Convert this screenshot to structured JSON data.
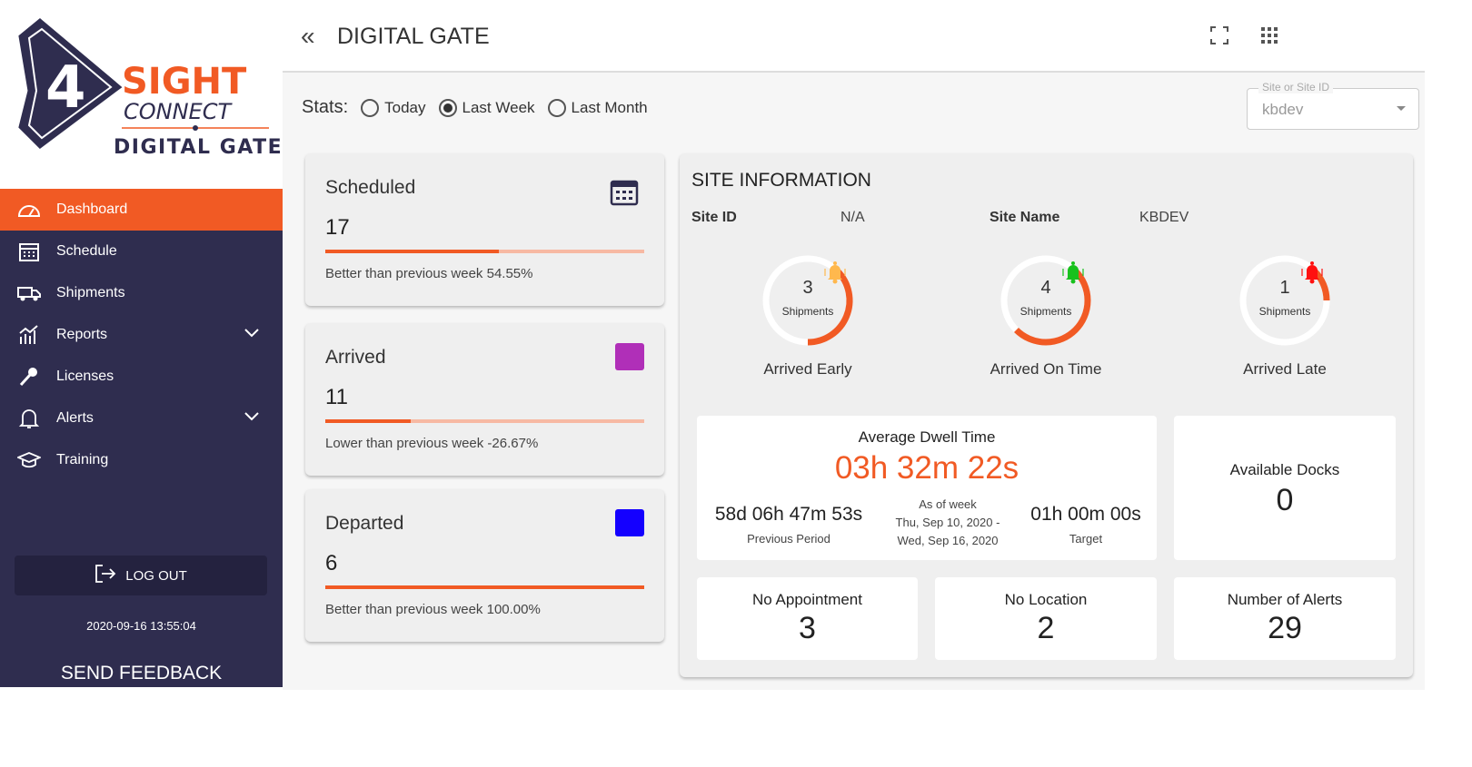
{
  "logo": {
    "text": "4 SIGHT CONNECT DIGITAL GATE"
  },
  "sidebar": {
    "items": [
      {
        "label": "Dashboard",
        "icon": "speedometer-icon",
        "active": true
      },
      {
        "label": "Schedule",
        "icon": "calendar-icon"
      },
      {
        "label": "Shipments",
        "icon": "truck-icon"
      },
      {
        "label": "Reports",
        "icon": "chart-icon",
        "expandable": true
      },
      {
        "label": "Licenses",
        "icon": "key-icon"
      },
      {
        "label": "Alerts",
        "icon": "bell-icon",
        "expandable": true
      },
      {
        "label": "Training",
        "icon": "graduation-cap-icon"
      }
    ],
    "logout": "LOG OUT",
    "timestamp": "2020-09-16 13:55:04",
    "feedback": "SEND FEEDBACK"
  },
  "header": {
    "title": "DIGITAL GATE"
  },
  "stats": {
    "label": "Stats:",
    "options": [
      "Today",
      "Last Week",
      "Last Month"
    ],
    "selected": "Last Week"
  },
  "site_select": {
    "label": "Site or Site ID",
    "value": "kbdev"
  },
  "cards": [
    {
      "title": "Scheduled",
      "value": "17",
      "progress": 0.5455,
      "note": "Better than previous week 54.55%",
      "icon": "calendar-icon"
    },
    {
      "title": "Arrived",
      "value": "11",
      "progress": 0.2667,
      "note": "Lower than previous week -26.67%",
      "color": "#b02fb8"
    },
    {
      "title": "Departed",
      "value": "6",
      "progress": 1.0,
      "note": "Better than previous week 100.00%",
      "color": "#1400ff"
    }
  ],
  "site": {
    "heading": "SITE INFORMATION",
    "id_label": "Site ID",
    "id_value": "N/A",
    "name_label": "Site Name",
    "name_value": "KBDEV",
    "gauges": [
      {
        "value": "3",
        "unit": "Shipments",
        "label": "Arrived Early",
        "bell_color": "#ffb84d",
        "fraction": 0.375
      },
      {
        "value": "4",
        "unit": "Shipments",
        "label": "Arrived On Time",
        "bell_color": "#18c11d",
        "fraction": 0.5
      },
      {
        "value": "1",
        "unit": "Shipments",
        "label": "Arrived Late",
        "bell_color": "#ff1010",
        "fraction": 0.125
      }
    ]
  },
  "dwell": {
    "title": "Average Dwell Time",
    "value": "03h 32m 22s",
    "previous": "58d 06h 47m 53s",
    "previous_label": "Previous Period",
    "asof": "As of week",
    "range1": "Thu, Sep 10, 2020 -",
    "range2": "Wed, Sep 16, 2020",
    "target": "01h 00m 00s",
    "target_label": "Target"
  },
  "boxes": [
    {
      "label": "Available Docks",
      "value": "0"
    },
    {
      "label": "No Appointment",
      "value": "3"
    },
    {
      "label": "No Location",
      "value": "2"
    },
    {
      "label": "Number of Alerts",
      "value": "29"
    }
  ],
  "colors": {
    "accent": "#f15a24",
    "sidebar": "#2f2d4f"
  }
}
